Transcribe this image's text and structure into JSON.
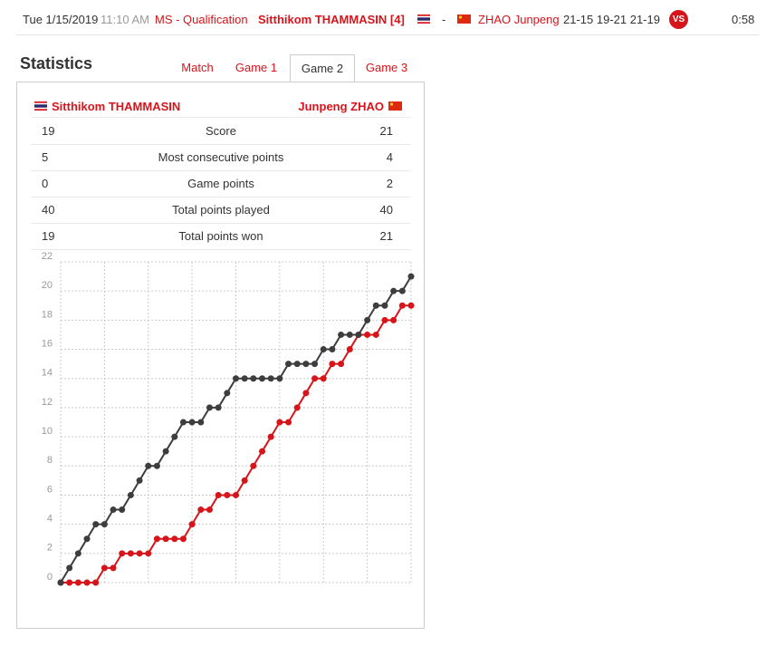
{
  "header": {
    "date": "Tue 1/15/2019",
    "time": "11:10 AM",
    "event": "MS - Qualification",
    "player1": "Sitthikom THAMMASIN [4]",
    "separator": "-",
    "player2": "ZHAO Junpeng",
    "scores": "21-15 19-21 21-19",
    "vs": "VS",
    "duration": "0:58"
  },
  "stats": {
    "title": "Statistics",
    "tabs": [
      "Match",
      "Game 1",
      "Game 2",
      "Game 3"
    ],
    "active_tab": 2,
    "left_player": "Sitthikom THAMMASIN",
    "right_player": "Junpeng ZHAO",
    "rows": [
      {
        "left": "19",
        "label": "Score",
        "right": "21"
      },
      {
        "left": "5",
        "label": "Most consecutive points",
        "right": "4"
      },
      {
        "left": "0",
        "label": "Game points",
        "right": "2"
      },
      {
        "left": "40",
        "label": "Total points played",
        "right": "40"
      },
      {
        "left": "19",
        "label": "Total points won",
        "right": "21"
      }
    ]
  },
  "chart_data": {
    "type": "line",
    "x": [
      0,
      1,
      2,
      3,
      4,
      5,
      6,
      7,
      8,
      9,
      10,
      11,
      12,
      13,
      14,
      15,
      16,
      17,
      18,
      19,
      20,
      21,
      22,
      23,
      24,
      25,
      26,
      27,
      28,
      29,
      30,
      31,
      32,
      33,
      34,
      35,
      36,
      37,
      38,
      39,
      40
    ],
    "xlim": [
      0,
      40
    ],
    "ylim": [
      0,
      22
    ],
    "yticks": [
      0,
      2,
      4,
      6,
      8,
      10,
      12,
      14,
      16,
      18,
      20,
      22
    ],
    "grid": true,
    "series": [
      {
        "color": "#d7141a",
        "values": [
          0,
          0,
          0,
          0,
          0,
          1,
          1,
          2,
          2,
          2,
          2,
          3,
          3,
          3,
          3,
          4,
          5,
          5,
          6,
          6,
          6,
          7,
          8,
          9,
          10,
          11,
          11,
          12,
          13,
          14,
          14,
          15,
          15,
          16,
          17,
          17,
          17,
          18,
          18,
          19,
          19
        ]
      },
      {
        "color": "#3d3d3d",
        "values": [
          0,
          1,
          2,
          3,
          4,
          4,
          5,
          5,
          6,
          7,
          8,
          8,
          9,
          10,
          11,
          11,
          11,
          12,
          12,
          13,
          14,
          14,
          14,
          14,
          14,
          14,
          15,
          15,
          15,
          15,
          16,
          16,
          17,
          17,
          17,
          18,
          19,
          19,
          20,
          20,
          21
        ]
      }
    ]
  }
}
